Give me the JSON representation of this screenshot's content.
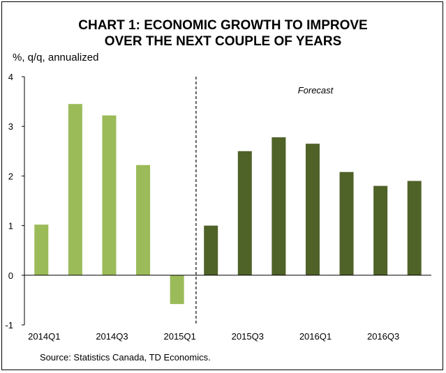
{
  "chart_data": {
    "type": "bar",
    "title_lines": [
      "CHART 1: ECONOMIC GROWTH TO IMPROVE",
      "OVER THE NEXT COUPLE OF YEARS"
    ],
    "ylabel": "%, q/q, annualized",
    "ylim": [
      -1,
      4
    ],
    "yticks": [
      -1,
      0,
      1,
      2,
      3,
      4
    ],
    "x_tick_labels": [
      "2014Q1",
      "2014Q3",
      "2015Q1",
      "2015Q3",
      "2016Q1",
      "2016Q3"
    ],
    "categories": [
      "2014Q1",
      "2014Q2",
      "2014Q3",
      "2014Q4",
      "2015Q1",
      "2015Q2",
      "2015Q3",
      "2015Q4",
      "2016Q1",
      "2016Q2",
      "2016Q3",
      "2016Q4"
    ],
    "series": [
      {
        "values": [
          1.02,
          3.45,
          3.22,
          2.22,
          -0.58,
          null,
          null,
          null,
          null,
          null,
          null,
          null
        ],
        "color": "#9bbb59"
      },
      {
        "values": [
          null,
          null,
          null,
          null,
          null,
          1.0,
          2.5,
          2.78,
          2.65,
          2.08,
          1.8,
          1.9
        ],
        "color": "#4f6228"
      }
    ],
    "annotation": "Forecast",
    "forecast_divider_after": "2015Q1",
    "grid": false
  },
  "source": "Source: Statistics Canada, TD Economics."
}
